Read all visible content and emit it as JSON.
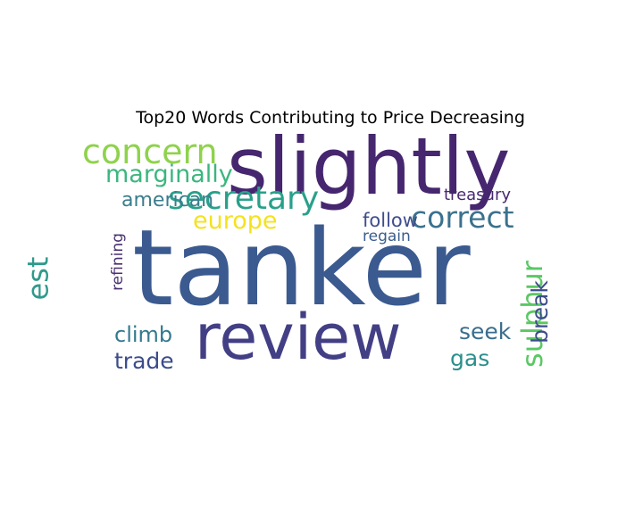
{
  "chart_data": {
    "type": "wordcloud",
    "title": "Top20 Words Contributing to Price Decreasing",
    "words": [
      {
        "text": "tanker",
        "color": "#3b5a8f",
        "weight": 1.0
      },
      {
        "text": "slightly",
        "color": "#46266f",
        "weight": 0.78
      },
      {
        "text": "review",
        "color": "#433f85",
        "weight": 0.62
      },
      {
        "text": "concern",
        "color": "#8fd24c",
        "weight": 0.34
      },
      {
        "text": "secretary",
        "color": "#29a08a",
        "weight": 0.33
      },
      {
        "text": "correct",
        "color": "#3a718e",
        "weight": 0.3
      },
      {
        "text": "marginally",
        "color": "#3cb67f",
        "weight": 0.3
      },
      {
        "text": "europe",
        "color": "#f4e21e",
        "weight": 0.29
      },
      {
        "text": "american",
        "color": "#3b7d8c",
        "weight": 0.24
      },
      {
        "text": "treasury",
        "color": "#46286f",
        "weight": 0.24
      },
      {
        "text": "follow",
        "color": "#3f4e8c",
        "weight": 0.24
      },
      {
        "text": "regain",
        "color": "#3a5d8c",
        "weight": 0.22
      },
      {
        "text": "climb",
        "color": "#337a8e",
        "weight": 0.22
      },
      {
        "text": "trade",
        "color": "#3b4c8a",
        "weight": 0.21
      },
      {
        "text": "seek",
        "color": "#3a6e8e",
        "weight": 0.21
      },
      {
        "text": "gas",
        "color": "#2a8f8c",
        "weight": 0.2
      },
      {
        "text": "est",
        "color": "#2f9a8b",
        "weight": 0.19
      },
      {
        "text": "refining",
        "color": "#47306f",
        "weight": 0.16
      },
      {
        "text": "sulphur",
        "color": "#5ac864",
        "weight": 0.15
      },
      {
        "text": "break",
        "color": "#3d4d8a",
        "weight": 0.15
      }
    ]
  }
}
